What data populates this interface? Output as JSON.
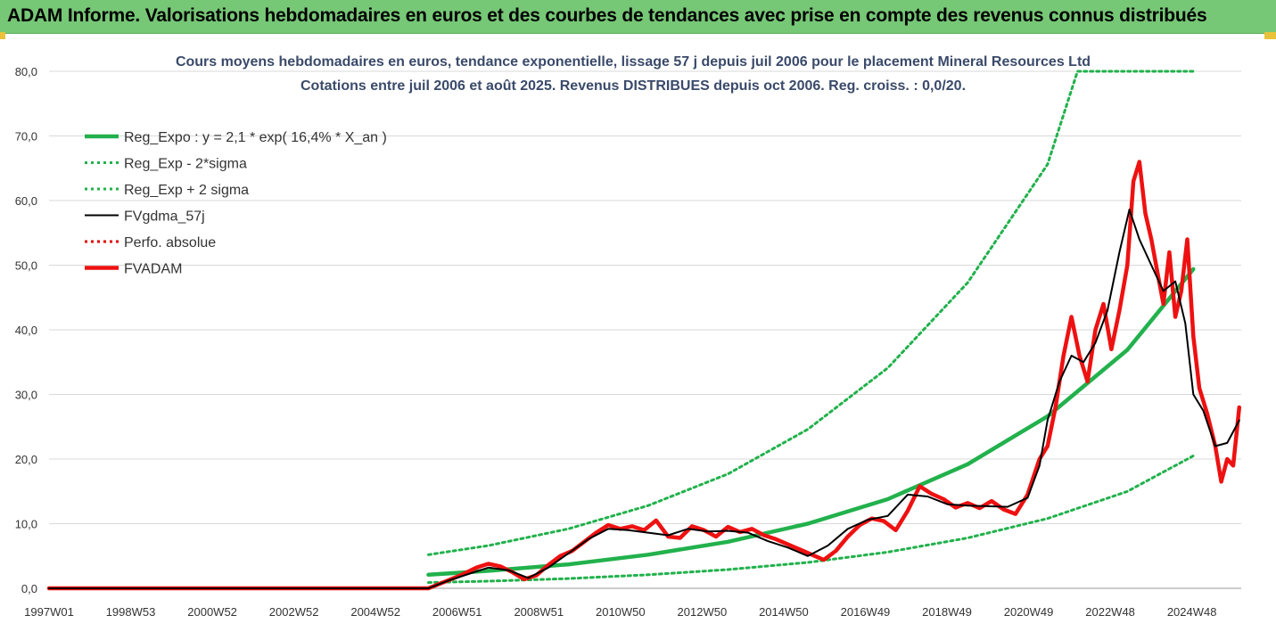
{
  "header": {
    "title": "ADAM Informe. Valorisations hebdomadaires en euros et des courbes de tendances avec prise en compte des revenus connus distribués"
  },
  "colors": {
    "banner": "#76c776",
    "reg_expo": "#22b14c",
    "sigma": "#22b14c",
    "fvgdma": "#000000",
    "perfo": "#e00000",
    "fvadam": "#ee1111"
  },
  "chart_data": {
    "type": "line",
    "title": "Cours moyens hebdomadaires en euros, tendance exponentielle, lissage 57 j depuis juil 2006 pour le placement Mineral Resources Ltd",
    "subtitle": "Cotations entre juil 2006 et août 2025. Revenus DISTRIBUES depuis oct 2006. Reg. croiss. : 0,0/20.",
    "x_ticks": [
      "1997W01",
      "1998W53",
      "2000W52",
      "2002W52",
      "2004W52",
      "2006W51",
      "2008W51",
      "2010W50",
      "2012W50",
      "2014W50",
      "2016W49",
      "2018W49",
      "2020W49",
      "2022W48",
      "2024W48"
    ],
    "y_ticks": [
      "0,0",
      "10,0",
      "20,0",
      "30,0",
      "40,0",
      "50,0",
      "60,0",
      "70,0",
      "80,0"
    ],
    "ylim": [
      0,
      80
    ],
    "xlim": [
      1997.0,
      2025.65
    ],
    "grid": "horizontal",
    "legend_position": "top-left",
    "series": [
      {
        "name": "Reg_Expo : y = 2,1 * exp( 16,4% *  X_an )",
        "style": "solid-thick",
        "color": "#22b14c",
        "points": [
          [
            2006.5,
            2.1
          ],
          [
            2008,
            2.7
          ],
          [
            2010,
            3.7
          ],
          [
            2012,
            5.2
          ],
          [
            2014,
            7.2
          ],
          [
            2016,
            10.0
          ],
          [
            2018,
            13.8
          ],
          [
            2020,
            19.2
          ],
          [
            2022,
            26.6
          ],
          [
            2024,
            36.9
          ],
          [
            2025.65,
            49.4
          ]
        ]
      },
      {
        "name": "Reg_Exp - 2*sigma",
        "style": "dotted",
        "color": "#22b14c",
        "points": [
          [
            2006.5,
            0.9
          ],
          [
            2008,
            1.1
          ],
          [
            2010,
            1.5
          ],
          [
            2012,
            2.1
          ],
          [
            2014,
            2.9
          ],
          [
            2016,
            4.0
          ],
          [
            2018,
            5.6
          ],
          [
            2020,
            7.8
          ],
          [
            2022,
            10.8
          ],
          [
            2024,
            15.0
          ],
          [
            2025.65,
            20.5
          ]
        ]
      },
      {
        "name": "Reg_Exp + 2 sigma",
        "style": "dotted",
        "color": "#22b14c",
        "points": [
          [
            2006.5,
            5.2
          ],
          [
            2008,
            6.6
          ],
          [
            2010,
            9.2
          ],
          [
            2012,
            12.8
          ],
          [
            2014,
            17.7
          ],
          [
            2016,
            24.6
          ],
          [
            2018,
            34.1
          ],
          [
            2020,
            47.3
          ],
          [
            2022,
            65.6
          ],
          [
            2022.75,
            80
          ],
          [
            2025.65,
            80
          ]
        ]
      },
      {
        "name": "FVgdma_57j",
        "style": "solid",
        "color": "#000000",
        "points": [
          [
            1997.0,
            0
          ],
          [
            2006.5,
            0
          ],
          [
            2007.0,
            1.2
          ],
          [
            2007.5,
            2.2
          ],
          [
            2008.0,
            3.2
          ],
          [
            2008.5,
            2.8
          ],
          [
            2009.0,
            1.6
          ],
          [
            2009.5,
            3.2
          ],
          [
            2010.0,
            5.4
          ],
          [
            2010.5,
            7.6
          ],
          [
            2011.0,
            9.2
          ],
          [
            2011.5,
            9.0
          ],
          [
            2012.0,
            8.6
          ],
          [
            2012.5,
            8.2
          ],
          [
            2013.0,
            9.2
          ],
          [
            2013.5,
            8.8
          ],
          [
            2014.0,
            8.9
          ],
          [
            2014.5,
            8.6
          ],
          [
            2015.0,
            7.3
          ],
          [
            2015.5,
            6.3
          ],
          [
            2016.0,
            5.0
          ],
          [
            2016.5,
            6.6
          ],
          [
            2017.0,
            9.2
          ],
          [
            2017.5,
            10.6
          ],
          [
            2018.0,
            11.2
          ],
          [
            2018.5,
            14.5
          ],
          [
            2019.0,
            14.2
          ],
          [
            2019.5,
            13.0
          ],
          [
            2020.0,
            12.8
          ],
          [
            2020.5,
            12.7
          ],
          [
            2021.0,
            12.6
          ],
          [
            2021.5,
            14.0
          ],
          [
            2021.8,
            19.0
          ],
          [
            2022.0,
            26.0
          ],
          [
            2022.3,
            32.0
          ],
          [
            2022.6,
            36.0
          ],
          [
            2022.9,
            35.0
          ],
          [
            2023.2,
            38.0
          ],
          [
            2023.5,
            43.0
          ],
          [
            2023.8,
            52.0
          ],
          [
            2024.05,
            58.6
          ],
          [
            2024.3,
            54.0
          ],
          [
            2024.6,
            50.0
          ],
          [
            2024.9,
            46.0
          ],
          [
            2025.2,
            47.5
          ],
          [
            2025.45,
            41.0
          ],
          [
            2025.65,
            30.0
          ],
          [
            2025.9,
            27.5
          ],
          [
            2026.2,
            22.0
          ],
          [
            2026.5,
            22.5
          ],
          [
            2026.8,
            26.0
          ]
        ]
      },
      {
        "name": "Perfo. absolue",
        "style": "dotted",
        "color": "#e00000",
        "points": []
      },
      {
        "name": "FVADAM",
        "style": "solid-thick",
        "color": "#ee1111",
        "points": [
          [
            1997.0,
            0
          ],
          [
            2006.5,
            0
          ],
          [
            2006.9,
            1.0
          ],
          [
            2007.3,
            2.0
          ],
          [
            2007.7,
            3.2
          ],
          [
            2008.0,
            3.8
          ],
          [
            2008.3,
            3.4
          ],
          [
            2008.6,
            2.5
          ],
          [
            2008.9,
            1.4
          ],
          [
            2009.2,
            2.0
          ],
          [
            2009.5,
            3.6
          ],
          [
            2009.8,
            5.0
          ],
          [
            2010.1,
            5.8
          ],
          [
            2010.4,
            7.2
          ],
          [
            2010.7,
            8.6
          ],
          [
            2011.0,
            9.8
          ],
          [
            2011.3,
            9.2
          ],
          [
            2011.6,
            9.6
          ],
          [
            2011.9,
            9.0
          ],
          [
            2012.2,
            10.5
          ],
          [
            2012.5,
            8.0
          ],
          [
            2012.8,
            7.8
          ],
          [
            2013.1,
            9.6
          ],
          [
            2013.4,
            9.0
          ],
          [
            2013.7,
            8.0
          ],
          [
            2014.0,
            9.5
          ],
          [
            2014.3,
            8.7
          ],
          [
            2014.6,
            9.2
          ],
          [
            2014.9,
            8.2
          ],
          [
            2015.2,
            7.6
          ],
          [
            2015.5,
            6.8
          ],
          [
            2015.8,
            6.0
          ],
          [
            2016.1,
            5.2
          ],
          [
            2016.4,
            4.4
          ],
          [
            2016.7,
            5.8
          ],
          [
            2017.0,
            8.0
          ],
          [
            2017.3,
            9.8
          ],
          [
            2017.6,
            10.8
          ],
          [
            2017.9,
            10.4
          ],
          [
            2018.2,
            9.0
          ],
          [
            2018.5,
            12.0
          ],
          [
            2018.8,
            15.8
          ],
          [
            2019.1,
            14.6
          ],
          [
            2019.4,
            13.8
          ],
          [
            2019.7,
            12.5
          ],
          [
            2020.0,
            13.2
          ],
          [
            2020.3,
            12.4
          ],
          [
            2020.6,
            13.5
          ],
          [
            2020.9,
            12.2
          ],
          [
            2021.2,
            11.5
          ],
          [
            2021.5,
            14.5
          ],
          [
            2021.8,
            20.0
          ],
          [
            2022.0,
            22.0
          ],
          [
            2022.2,
            28.0
          ],
          [
            2022.4,
            36.0
          ],
          [
            2022.6,
            42.0
          ],
          [
            2022.8,
            36.0
          ],
          [
            2023.0,
            32.0
          ],
          [
            2023.2,
            40.0
          ],
          [
            2023.4,
            44.0
          ],
          [
            2023.6,
            37.0
          ],
          [
            2023.8,
            43.0
          ],
          [
            2024.0,
            50.0
          ],
          [
            2024.15,
            63.0
          ],
          [
            2024.3,
            66.0
          ],
          [
            2024.45,
            58.0
          ],
          [
            2024.6,
            54.0
          ],
          [
            2024.75,
            49.0
          ],
          [
            2024.9,
            44.0
          ],
          [
            2025.05,
            52.0
          ],
          [
            2025.2,
            42.0
          ],
          [
            2025.35,
            46.0
          ],
          [
            2025.5,
            54.0
          ],
          [
            2025.65,
            39.0
          ],
          [
            2025.8,
            31.0
          ],
          [
            2026.0,
            27.0
          ],
          [
            2026.2,
            22.0
          ],
          [
            2026.35,
            16.5
          ],
          [
            2026.5,
            20.0
          ],
          [
            2026.65,
            19.0
          ],
          [
            2026.8,
            28.0
          ]
        ]
      }
    ]
  }
}
